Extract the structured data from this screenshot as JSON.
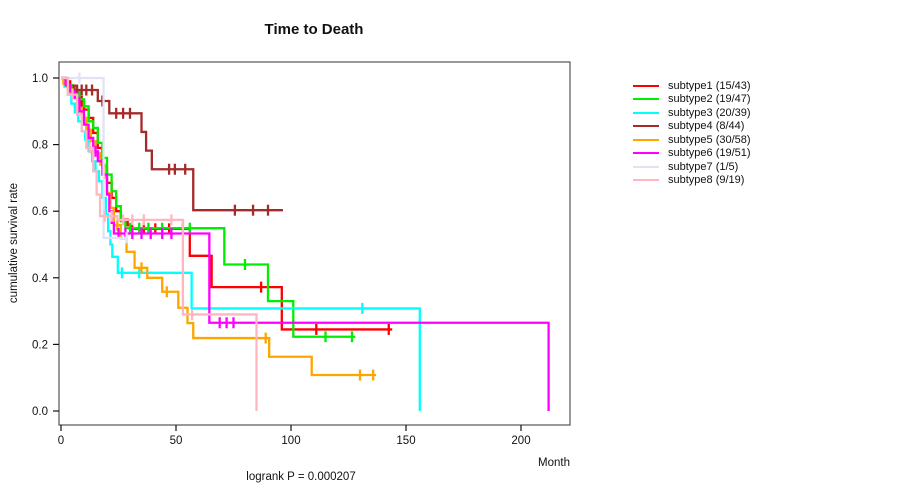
{
  "figure": {
    "background": "#ffffff",
    "text_color": "#111111",
    "frame_color": "#555555"
  },
  "chart_data": {
    "type": "line",
    "variant": "kaplan-meier-step-curves",
    "title": "Time to Death",
    "xlabel": "Month",
    "ylabel": "cumulative survival rate",
    "annotation": "logrank P = 0.000207",
    "grid": false,
    "legend_position": "right-outside",
    "xlim": [
      0,
      222
    ],
    "ylim": [
      0.0,
      1.0
    ],
    "x_ticks": [
      0,
      50,
      100,
      150,
      200
    ],
    "y_tick_labels": [
      "0.0",
      "0.2",
      "0.4",
      "0.6",
      "0.8",
      "1.0"
    ],
    "series": [
      {
        "name": "subtype1",
        "label": "subtype1 (15/43)",
        "color": "#FF0000",
        "points": [
          [
            0,
            1.0
          ],
          [
            2,
            0.977
          ],
          [
            6,
            0.953
          ],
          [
            8,
            0.93
          ],
          [
            10,
            0.905
          ],
          [
            12,
            0.88
          ],
          [
            14,
            0.835
          ],
          [
            16,
            0.79
          ],
          [
            18,
            0.735
          ],
          [
            20,
            0.685
          ],
          [
            22,
            0.64
          ],
          [
            24,
            0.6
          ],
          [
            26,
            0.575
          ],
          [
            29,
            0.558
          ],
          [
            31,
            0.547
          ],
          [
            56,
            0.466
          ],
          [
            65.5,
            0.372
          ],
          [
            96,
            0.245
          ]
        ],
        "censor_times": [
          4,
          9,
          36,
          41,
          47,
          53,
          87,
          111,
          142.5
        ],
        "end_month": 144
      },
      {
        "name": "subtype2",
        "label": "subtype2 (19/47)",
        "color": "#00EE00",
        "points": [
          [
            0,
            1.0
          ],
          [
            3,
            0.979
          ],
          [
            5,
            0.957
          ],
          [
            8,
            0.936
          ],
          [
            10,
            0.915
          ],
          [
            12,
            0.87
          ],
          [
            14,
            0.85
          ],
          [
            16,
            0.805
          ],
          [
            18,
            0.76
          ],
          [
            20,
            0.71
          ],
          [
            22,
            0.66
          ],
          [
            24,
            0.615
          ],
          [
            26,
            0.57
          ],
          [
            28,
            0.549
          ],
          [
            71,
            0.44
          ],
          [
            90,
            0.33
          ],
          [
            101,
            0.223
          ]
        ],
        "censor_times": [
          6,
          30,
          34,
          38,
          44,
          56,
          80,
          115,
          126.5
        ],
        "end_month": 128
      },
      {
        "name": "subtype3",
        "label": "subtype3 (20/39)",
        "color": "#00FFFF",
        "points": [
          [
            0,
            1.0
          ],
          [
            1.5,
            0.974
          ],
          [
            3,
            0.95
          ],
          [
            4.5,
            0.923
          ],
          [
            6,
            0.897
          ],
          [
            7.5,
            0.87
          ],
          [
            9,
            0.84
          ],
          [
            10.5,
            0.815
          ],
          [
            12,
            0.78
          ],
          [
            13.5,
            0.75
          ],
          [
            15,
            0.72
          ],
          [
            16.5,
            0.69
          ],
          [
            18,
            0.64
          ],
          [
            19.5,
            0.59
          ],
          [
            20.5,
            0.54
          ],
          [
            21.5,
            0.5
          ],
          [
            22.3,
            0.463
          ],
          [
            24.7,
            0.415
          ],
          [
            56.8,
            0.308
          ],
          [
            156,
            0.0
          ]
        ],
        "censor_times": [
          26.5,
          34,
          131
        ],
        "end_month": 156
      },
      {
        "name": "subtype4",
        "label": "subtype4 (8/44)",
        "color": "#A52A2A",
        "points": [
          [
            0,
            1.0
          ],
          [
            2.5,
            0.977
          ],
          [
            4,
            0.964
          ],
          [
            16,
            0.931
          ],
          [
            21,
            0.894
          ],
          [
            35,
            0.838
          ],
          [
            37,
            0.782
          ],
          [
            39.5,
            0.726
          ],
          [
            57.5,
            0.603
          ]
        ],
        "censor_times": [
          5.5,
          7,
          9,
          11,
          13.5,
          18,
          24,
          27,
          30,
          47,
          49.5,
          54,
          75.6,
          83.5,
          90
        ],
        "end_month": 96.5
      },
      {
        "name": "subtype5",
        "label": "subtype5 (30/58)",
        "color": "#FFA500",
        "points": [
          [
            0,
            1.0
          ],
          [
            1,
            0.983
          ],
          [
            3,
            0.966
          ],
          [
            5,
            0.948
          ],
          [
            7,
            0.91
          ],
          [
            9,
            0.88
          ],
          [
            11,
            0.845
          ],
          [
            13,
            0.81
          ],
          [
            15,
            0.775
          ],
          [
            17,
            0.74
          ],
          [
            19,
            0.7
          ],
          [
            20,
            0.655
          ],
          [
            21.5,
            0.61
          ],
          [
            23,
            0.558
          ],
          [
            26,
            0.519
          ],
          [
            28.5,
            0.478
          ],
          [
            32,
            0.43
          ],
          [
            37.5,
            0.4
          ],
          [
            44,
            0.358
          ],
          [
            51,
            0.31
          ],
          [
            55,
            0.264
          ],
          [
            57.5,
            0.219
          ],
          [
            90.5,
            0.163
          ],
          [
            109,
            0.108
          ]
        ],
        "censor_times": [
          4,
          24.5,
          35,
          46,
          89,
          130,
          135.7
        ],
        "end_month": 137
      },
      {
        "name": "subtype6",
        "label": "subtype6 (19/51)",
        "color": "#FF00FF",
        "points": [
          [
            0,
            1.0
          ],
          [
            2,
            0.98
          ],
          [
            4,
            0.96
          ],
          [
            6,
            0.94
          ],
          [
            8,
            0.9
          ],
          [
            10,
            0.86
          ],
          [
            12,
            0.82
          ],
          [
            14,
            0.78
          ],
          [
            16,
            0.75
          ],
          [
            18,
            0.71
          ],
          [
            20,
            0.65
          ],
          [
            21,
            0.6
          ],
          [
            22,
            0.565
          ],
          [
            23,
            0.533
          ],
          [
            64.5,
            0.265
          ],
          [
            212,
            0.0
          ]
        ],
        "censor_times": [
          7,
          15,
          25,
          28,
          31,
          35,
          39,
          44,
          48,
          69,
          72,
          75
        ],
        "end_month": 212
      },
      {
        "name": "subtype7",
        "label": "subtype7 (1/5)",
        "color": "#E2E2F5",
        "points": [
          [
            0,
            1.0
          ],
          [
            18.5,
            0.52
          ]
        ],
        "censor_times": [
          8,
          28.5
        ],
        "end_month": 29
      },
      {
        "name": "subtype8",
        "label": "subtype8 (9/19)",
        "color": "#FFB6C1",
        "points": [
          [
            0,
            1.0
          ],
          [
            3,
            0.95
          ],
          [
            7,
            0.89
          ],
          [
            9,
            0.84
          ],
          [
            11,
            0.79
          ],
          [
            14,
            0.72
          ],
          [
            15.5,
            0.65
          ],
          [
            17,
            0.585
          ],
          [
            24.5,
            0.574
          ],
          [
            53,
            0.29
          ],
          [
            85,
            0.0
          ]
        ],
        "censor_times": [
          5,
          12.5,
          19,
          22,
          27,
          31,
          36,
          48,
          57
        ],
        "end_month": 85
      }
    ]
  }
}
